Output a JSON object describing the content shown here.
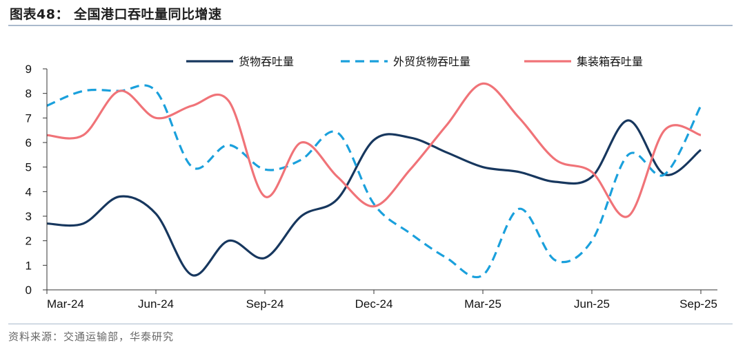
{
  "header": {
    "title": "图表48：  全国港口吞吐量同比增速"
  },
  "footer": {
    "source": "资料来源：交通运输部，华泰研究"
  },
  "chart_data": {
    "type": "line",
    "x": [
      "Mar-24",
      "Apr-24",
      "May-24",
      "Jun-24",
      "Jul-24",
      "Aug-24",
      "Sep-24",
      "Oct-24",
      "Nov-24",
      "Dec-24",
      "Jan-25",
      "Feb-25",
      "Mar-25",
      "Apr-25",
      "May-25",
      "Jun-25",
      "Jul-25",
      "Aug-25",
      "Sep-25"
    ],
    "xticks": [
      "Mar-24",
      "Jun-24",
      "Sep-24",
      "Dec-24",
      "Mar-25",
      "Jun-25",
      "Sep-25"
    ],
    "ylim": [
      0,
      9
    ],
    "yticks": [
      0,
      1,
      2,
      3,
      4,
      5,
      6,
      7,
      8,
      9
    ],
    "legend_position": "top",
    "grid": false,
    "series": [
      {
        "name": "货物吞吐量",
        "color": "#17375e",
        "dash": "solid",
        "values": [
          2.7,
          2.7,
          3.8,
          3.1,
          0.6,
          2.0,
          1.3,
          3.0,
          3.7,
          6.1,
          6.2,
          5.6,
          5.0,
          4.8,
          4.4,
          4.6,
          6.9,
          4.7,
          5.7
        ]
      },
      {
        "name": "外贸货物吞吐量",
        "color": "#1aa0dc",
        "dash": "dashed",
        "values": [
          7.5,
          8.1,
          8.1,
          8.1,
          5.0,
          5.9,
          4.9,
          5.3,
          6.4,
          3.5,
          2.3,
          1.3,
          0.6,
          3.3,
          1.2,
          2.0,
          5.5,
          4.7,
          7.5
        ]
      },
      {
        "name": "集装箱吞吐量",
        "color": "#f07378",
        "dash": "solid",
        "values": [
          6.3,
          6.3,
          8.1,
          7.0,
          7.5,
          7.7,
          3.8,
          6.0,
          4.6,
          3.4,
          4.9,
          6.7,
          8.4,
          7.0,
          5.3,
          4.8,
          3.0,
          6.5,
          6.3
        ]
      }
    ]
  }
}
